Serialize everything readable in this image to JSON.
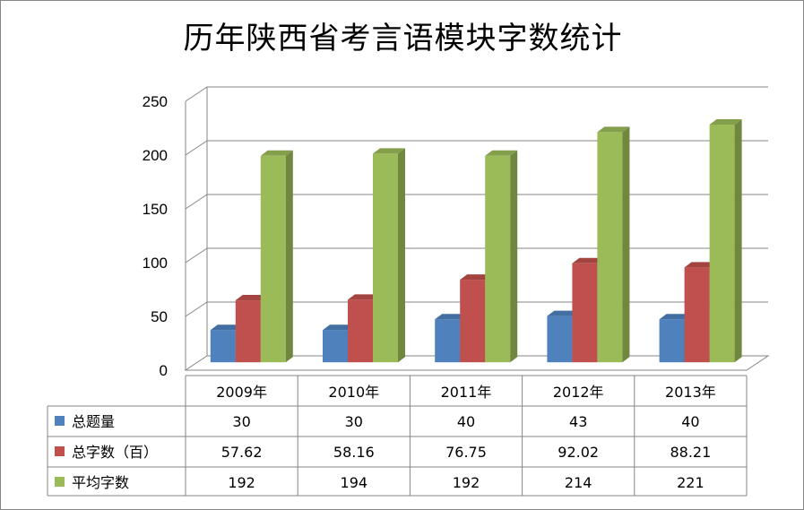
{
  "chart_data": {
    "type": "bar",
    "title": "历年陕西省考言语模块字数统计",
    "categories": [
      "2009年",
      "2010年",
      "2011年",
      "2012年",
      "2013年"
    ],
    "series": [
      {
        "name": "总题量",
        "values": [
          30,
          30,
          40,
          43,
          40
        ],
        "color": "#4F81BD"
      },
      {
        "name": "总字数（百）",
        "values": [
          57.62,
          58.16,
          76.75,
          92.02,
          88.21
        ],
        "color": "#C0504D"
      },
      {
        "name": "平均字数",
        "values": [
          192,
          194,
          192,
          214,
          221
        ],
        "color": "#9BBB59"
      }
    ],
    "value_labels": [
      [
        "30",
        "30",
        "40",
        "43",
        "40"
      ],
      [
        "57.62",
        "58.16",
        "76.75",
        "92.02",
        "88.21"
      ],
      [
        "192",
        "194",
        "192",
        "214",
        "221"
      ]
    ],
    "yticks": [
      "0",
      "50",
      "100",
      "150",
      "200",
      "250"
    ],
    "ylim": [
      0,
      250
    ],
    "grid": true,
    "style": "3d-column",
    "legend": "data-table"
  }
}
